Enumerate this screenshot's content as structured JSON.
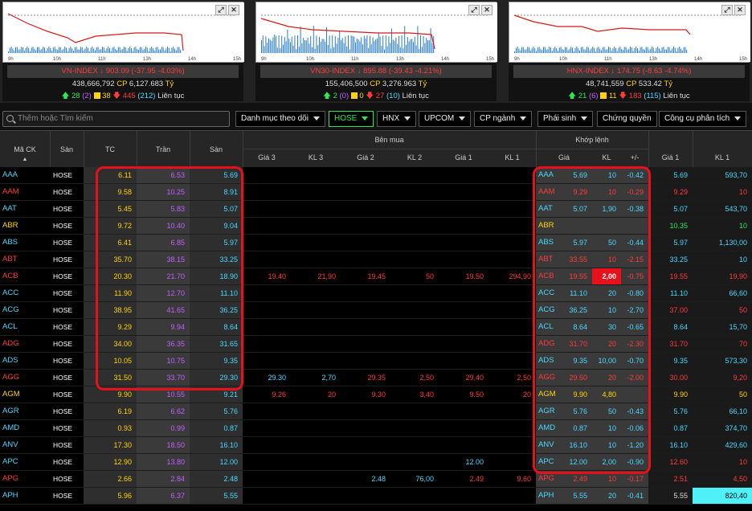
{
  "panels": [
    {
      "name": "VN-INDEX",
      "arrow": "↓",
      "value": "903.09 (-37.95 -4.03%)",
      "volume": "438,666,792",
      "cp_label": "CP",
      "cp_value": "6,127.683",
      "unit": "Tỷ",
      "up": "28",
      "up_ceil": "(2)",
      "ref": "38",
      "down": "445",
      "down_floor": "(212)",
      "status": "Liên tục",
      "ticks": [
        "9h",
        "10h",
        "11h",
        "13h",
        "14h",
        "15h"
      ]
    },
    {
      "name": "VN30-INDEX",
      "arrow": "↓",
      "value": "895.88 (-39.43 -4.21%)",
      "volume": "155,406,500",
      "cp_label": "CP",
      "cp_value": "3,276.963",
      "unit": "Tỷ",
      "up": "2",
      "up_ceil": "(0)",
      "ref": "0",
      "down": "27",
      "down_floor": "(10)",
      "status": "Liên tục",
      "ticks": [
        "9h",
        "10h",
        "11h",
        "13h",
        "14h",
        "15h"
      ]
    },
    {
      "name": "HNX-INDEX",
      "arrow": "↓",
      "value": "174.75 (-8.63 -4.74%)",
      "volume": "48,741,559",
      "cp_label": "CP",
      "cp_value": "533.42",
      "unit": "Tỷ",
      "up": "21",
      "up_ceil": "(6)",
      "ref": "11",
      "down": "183",
      "down_floor": "(115)",
      "status": "Liên tục",
      "ticks": [
        "9h",
        "10h",
        "11h",
        "13h",
        "14h",
        "15h"
      ]
    }
  ],
  "toolbar": {
    "search_placeholder": "Thêm hoặc Tìm kiếm",
    "watchlist": "Danh mục theo dõi",
    "hose": "HOSE",
    "hnx": "HNX",
    "upcom": "UPCOM",
    "sector": "CP ngành",
    "derivative": "Phái sinh",
    "warrant": "Chứng quyền",
    "tools": "Công cụ phân tích"
  },
  "headers": {
    "symbol": "Mã CK",
    "exchange": "Sàn",
    "ref": "TC",
    "ceil": "Trần",
    "floor": "Sàn",
    "bid_group": "Bên mua",
    "match_group": "Khớp lệnh",
    "g3": "Giá 3",
    "kl3": "KL 3",
    "g2": "Giá 2",
    "kl2": "KL 2",
    "g1": "Giá 1",
    "kl1": "KL 1",
    "mprice": "Giá",
    "mvol": "KL",
    "mchg": "+/-",
    "ag1": "Giá 1",
    "akl1": "KL 1"
  },
  "rows": [
    {
      "sym": "AAA",
      "c": "cyan",
      "ex": "HOSE",
      "tc": "6.11",
      "tr": "6.53",
      "sn": "5.69",
      "g3": "",
      "k3": "",
      "g2": "",
      "k2": "",
      "g1": "",
      "k1": "",
      "mp": "5.69",
      "mv": "10",
      "mc": "-0.42",
      "a1": "5.69",
      "ak1": "593,70",
      "mcol": "cyan",
      "a1c": "cyan"
    },
    {
      "sym": "AAM",
      "c": "red",
      "ex": "HOSE",
      "tc": "9.58",
      "tr": "10.25",
      "sn": "8.91",
      "g3": "",
      "k3": "",
      "g2": "",
      "k2": "",
      "g1": "",
      "k1": "",
      "mp": "9.29",
      "mv": "10",
      "mc": "-0.29",
      "a1": "9.29",
      "ak1": "10",
      "mcol": "red",
      "a1c": "red"
    },
    {
      "sym": "AAT",
      "c": "cyan",
      "ex": "HOSE",
      "tc": "5.45",
      "tr": "5.83",
      "sn": "5.07",
      "g3": "",
      "k3": "",
      "g2": "",
      "k2": "",
      "g1": "",
      "k1": "",
      "mp": "5.07",
      "mv": "1,90",
      "mc": "-0.38",
      "a1": "5.07",
      "ak1": "543,70",
      "mcol": "cyan",
      "a1c": "cyan"
    },
    {
      "sym": "ABR",
      "c": "yel",
      "ex": "HOSE",
      "tc": "9.72",
      "tr": "10.40",
      "sn": "9.04",
      "g3": "",
      "k3": "",
      "g2": "",
      "k2": "",
      "g1": "",
      "k1": "",
      "mp": "",
      "mv": "",
      "mc": "",
      "a1": "10.35",
      "ak1": "10",
      "mcol": "yel",
      "a1c": "grn"
    },
    {
      "sym": "ABS",
      "c": "cyan",
      "ex": "HOSE",
      "tc": "6.41",
      "tr": "6.85",
      "sn": "5.97",
      "g3": "",
      "k3": "",
      "g2": "",
      "k2": "",
      "g1": "",
      "k1": "",
      "mp": "5.97",
      "mv": "50",
      "mc": "-0.44",
      "a1": "5.97",
      "ak1": "1,130,00",
      "mcol": "cyan",
      "a1c": "cyan"
    },
    {
      "sym": "ABT",
      "c": "red",
      "ex": "HOSE",
      "tc": "35.70",
      "tr": "38.15",
      "sn": "33.25",
      "g3": "",
      "k3": "",
      "g2": "",
      "k2": "",
      "g1": "",
      "k1": "",
      "mp": "33.55",
      "mv": "10",
      "mc": "-2.15",
      "a1": "33.25",
      "ak1": "10",
      "mcol": "red",
      "a1c": "cyan"
    },
    {
      "sym": "ACB",
      "c": "red",
      "ex": "HOSE",
      "tc": "20.30",
      "tr": "21.70",
      "sn": "18.90",
      "g3": "19.40",
      "k3": "21,90",
      "g2": "19.45",
      "k2": "50",
      "g1": "19.50",
      "k1": "294,90",
      "mp": "19.55",
      "mv": "2,00",
      "mc": "-0.75",
      "a1": "19.55",
      "ak1": "19,90",
      "mcol": "red",
      "a1c": "red",
      "hl": true
    },
    {
      "sym": "ACC",
      "c": "cyan",
      "ex": "HOSE",
      "tc": "11.90",
      "tr": "12.70",
      "sn": "11.10",
      "g3": "",
      "k3": "",
      "g2": "",
      "k2": "",
      "g1": "",
      "k1": "",
      "mp": "11.10",
      "mv": "20",
      "mc": "-0.80",
      "a1": "11.10",
      "ak1": "66,60",
      "mcol": "cyan",
      "a1c": "cyan"
    },
    {
      "sym": "ACG",
      "c": "cyan",
      "ex": "HOSE",
      "tc": "38.95",
      "tr": "41.65",
      "sn": "36.25",
      "g3": "",
      "k3": "",
      "g2": "",
      "k2": "",
      "g1": "",
      "k1": "",
      "mp": "36.25",
      "mv": "10",
      "mc": "-2.70",
      "a1": "37.00",
      "ak1": "50",
      "mcol": "cyan",
      "a1c": "red"
    },
    {
      "sym": "ACL",
      "c": "cyan",
      "ex": "HOSE",
      "tc": "9.29",
      "tr": "9.94",
      "sn": "8.64",
      "g3": "",
      "k3": "",
      "g2": "",
      "k2": "",
      "g1": "",
      "k1": "",
      "mp": "8.64",
      "mv": "30",
      "mc": "-0.65",
      "a1": "8.64",
      "ak1": "15,70",
      "mcol": "cyan",
      "a1c": "cyan"
    },
    {
      "sym": "ADG",
      "c": "red",
      "ex": "HOSE",
      "tc": "34.00",
      "tr": "36.35",
      "sn": "31.65",
      "g3": "",
      "k3": "",
      "g2": "",
      "k2": "",
      "g1": "",
      "k1": "",
      "mp": "31.70",
      "mv": "20",
      "mc": "-2.30",
      "a1": "31.70",
      "ak1": "70",
      "mcol": "red",
      "a1c": "red"
    },
    {
      "sym": "ADS",
      "c": "cyan",
      "ex": "HOSE",
      "tc": "10.05",
      "tr": "10.75",
      "sn": "9.35",
      "g3": "",
      "k3": "",
      "g2": "",
      "k2": "",
      "g1": "",
      "k1": "",
      "mp": "9.35",
      "mv": "10,00",
      "mc": "-0.70",
      "a1": "9.35",
      "ak1": "573,30",
      "mcol": "cyan",
      "a1c": "cyan"
    },
    {
      "sym": "AGG",
      "c": "red",
      "ex": "HOSE",
      "tc": "31.50",
      "tr": "33.70",
      "sn": "29.30",
      "g3": "29.30",
      "k3": "2,70",
      "g2": "29.35",
      "k2": "2,50",
      "g1": "29.40",
      "k1": "2,50",
      "mp": "29.50",
      "mv": "20",
      "mc": "-2.00",
      "a1": "30.00",
      "ak1": "9,20",
      "mcol": "red",
      "a1c": "red",
      "g3c": "cyan",
      "k3c": "cyan"
    },
    {
      "sym": "AGM",
      "c": "yel",
      "ex": "HOSE",
      "tc": "9.90",
      "tr": "10.55",
      "sn": "9.21",
      "g3": "9.26",
      "k3": "20",
      "g2": "9.30",
      "k2": "3,40",
      "g1": "9.50",
      "k1": "20",
      "mp": "9.90",
      "mv": "4,80",
      "mc": "",
      "a1": "9.90",
      "ak1": "50",
      "mcol": "yel",
      "a1c": "yel"
    },
    {
      "sym": "AGR",
      "c": "cyan",
      "ex": "HOSE",
      "tc": "6.19",
      "tr": "6.62",
      "sn": "5.76",
      "g3": "",
      "k3": "",
      "g2": "",
      "k2": "",
      "g1": "",
      "k1": "",
      "mp": "5.76",
      "mv": "50",
      "mc": "-0.43",
      "a1": "5.76",
      "ak1": "66,10",
      "mcol": "cyan",
      "a1c": "cyan"
    },
    {
      "sym": "AMD",
      "c": "cyan",
      "ex": "HOSE",
      "tc": "0.93",
      "tr": "0.99",
      "sn": "0.87",
      "g3": "",
      "k3": "",
      "g2": "",
      "k2": "",
      "g1": "",
      "k1": "",
      "mp": "0.87",
      "mv": "10",
      "mc": "-0.06",
      "a1": "0.87",
      "ak1": "374,70",
      "mcol": "cyan",
      "a1c": "cyan"
    },
    {
      "sym": "ANV",
      "c": "cyan",
      "ex": "HOSE",
      "tc": "17.30",
      "tr": "18.50",
      "sn": "16.10",
      "g3": "",
      "k3": "",
      "g2": "",
      "k2": "",
      "g1": "",
      "k1": "",
      "mp": "16.10",
      "mv": "10",
      "mc": "-1.20",
      "a1": "16.10",
      "ak1": "429,60",
      "mcol": "cyan",
      "a1c": "cyan"
    },
    {
      "sym": "APC",
      "c": "cyan",
      "ex": "HOSE",
      "tc": "12.90",
      "tr": "13.80",
      "sn": "12.00",
      "g3": "",
      "k3": "",
      "g2": "",
      "k2": "",
      "g1": "12.00",
      "k1": "",
      "mp": "12.00",
      "mv": "2,00",
      "mc": "-0.90",
      "a1": "12.60",
      "ak1": "10",
      "mcol": "cyan",
      "a1c": "red",
      "g1c": "cyan"
    },
    {
      "sym": "APG",
      "c": "red",
      "ex": "HOSE",
      "tc": "2.66",
      "tr": "2.84",
      "sn": "2.48",
      "g3": "",
      "k3": "",
      "g2": "2.48",
      "k2": "76,00",
      "g1": "2.49",
      "k1": "9,60",
      "mp": "2.49",
      "mv": "10",
      "mc": "-0.17",
      "a1": "2.51",
      "ak1": "4,50",
      "mcol": "red",
      "a1c": "red",
      "g2c": "cyan",
      "k2c": "cyan"
    },
    {
      "sym": "APH",
      "c": "cyan",
      "ex": "HOSE",
      "tc": "5.96",
      "tr": "6.37",
      "sn": "5.55",
      "g3": "",
      "k3": "",
      "g2": "",
      "k2": "",
      "g1": "",
      "k1": "",
      "mp": "5.55",
      "mv": "20",
      "mc": "-0.41",
      "a1": "5.55",
      "ak1": "820,40",
      "mcol": "cyan",
      "a1c": "wht",
      "akhl": true
    }
  ],
  "colors": {
    "up": "#2ee85a",
    "ref": "#ffd400",
    "down": "#ff3b3b",
    "ceil": "#c060ff",
    "floor": "#4ad9ff",
    "highlight": "#e8101a"
  }
}
